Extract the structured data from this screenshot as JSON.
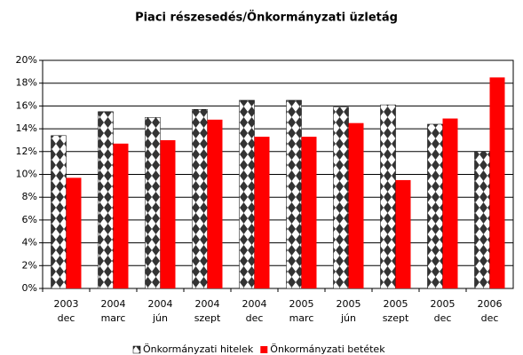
{
  "chart_data": {
    "type": "bar",
    "title": "Piaci részesedés/Önkormányzati üzletág",
    "categories": [
      [
        "2003",
        "dec"
      ],
      [
        "2004",
        "marc"
      ],
      [
        "2004",
        "jún"
      ],
      [
        "2004",
        "szept"
      ],
      [
        "2004",
        "dec"
      ],
      [
        "2005",
        "marc"
      ],
      [
        "2005",
        "jún"
      ],
      [
        "2005",
        "szept"
      ],
      [
        "2005",
        "dec"
      ],
      [
        "2006",
        "dec"
      ]
    ],
    "series": [
      {
        "name": "Önkormányzati hitelek",
        "color": "#000000",
        "pattern": "diamond",
        "values": [
          13.4,
          15.5,
          15.0,
          15.7,
          16.5,
          16.5,
          15.9,
          16.1,
          14.4,
          12.0
        ]
      },
      {
        "name": "Önkormányzati betétek",
        "color": "#ff0000",
        "values": [
          9.7,
          12.7,
          13.0,
          14.8,
          13.3,
          13.3,
          14.5,
          9.5,
          14.9,
          18.5
        ]
      }
    ],
    "ylim": [
      0,
      20
    ],
    "yticks": [
      {
        "value": 0,
        "label": "0%"
      },
      {
        "value": 2,
        "label": "2%"
      },
      {
        "value": 4,
        "label": "4%"
      },
      {
        "value": 6,
        "label": "6%"
      },
      {
        "value": 8,
        "label": "8%"
      },
      {
        "value": 10,
        "label": "10%"
      },
      {
        "value": 12,
        "label": "12%"
      },
      {
        "value": 14,
        "label": "14%"
      },
      {
        "value": 16,
        "label": "16%"
      },
      {
        "value": 18,
        "label": "18%"
      },
      {
        "value": 20,
        "label": "20%"
      }
    ],
    "grid": true,
    "legend": "bottom"
  }
}
